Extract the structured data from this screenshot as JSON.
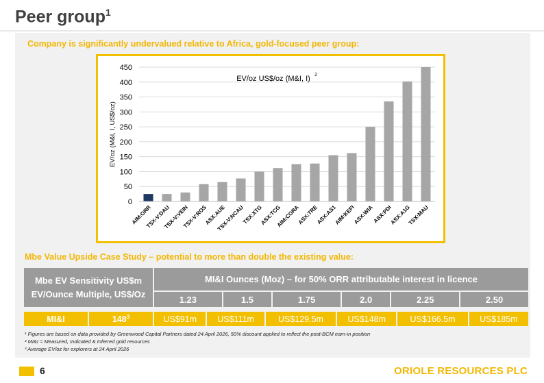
{
  "page": {
    "title": "Peer group",
    "title_sup": "1",
    "subtitle": "Company is significantly undervalued relative to Africa, gold-focused peer group:",
    "page_number": "6",
    "company": "ORIOLE RESOURCES PLC"
  },
  "chart_data": {
    "type": "bar",
    "title": "EV/oz US$/oz (M&I, I)",
    "title_sup": "2",
    "ylabel": "EV/oz (M&I, I, US$/oz)",
    "ylim": [
      0,
      450
    ],
    "yticks": [
      0,
      50,
      100,
      150,
      200,
      250,
      300,
      350,
      400,
      450
    ],
    "grid": true,
    "categories": [
      "AIM:ORR",
      "TSX-V:DAU",
      "TSX-V:VEIN",
      "TSX-V:ROS",
      "ASX:AUE",
      "TSX-V:NCAU",
      "TSX:XTG",
      "ASX:TCG",
      "AIM:CORA",
      "ASX:TRE",
      "ASX:AS1",
      "AIM:KEFI",
      "ASX:WIA",
      "ASX:PDI",
      "ASX:A1G",
      "TSX:MAU"
    ],
    "values": [
      25,
      25,
      30,
      58,
      65,
      77,
      100,
      112,
      125,
      127,
      155,
      162,
      250,
      335,
      402,
      450
    ],
    "colors": {
      "highlight": "#1f3864",
      "default": "#a6a6a6",
      "grid": "#d9d9d9"
    }
  },
  "case_study": {
    "title": "Mbe Value Upside Case Study – potential to more than double the existing value:",
    "header_left_line1": "Mbe EV Sensitivity US$m",
    "header_left_line2": "EV/Ounce Multiple, US$/Oz",
    "header_right": "MI&I Ounces (Moz) – for 50% ORR attributable interest in licence",
    "ounces": [
      "1.23",
      "1.5",
      "1.75",
      "2.0",
      "2.25",
      "2.50"
    ],
    "row_label": "MI&I",
    "row_multiple": "148",
    "row_multiple_sup": "3",
    "values": [
      "US$91m",
      "US$111m",
      "US$129.5m",
      "US$148m",
      "US$166.5m",
      "US$185m"
    ]
  },
  "footnotes": [
    "¹ Figures are based on data provided by Greenwood Capital Partners dated 24 April 2026, 50% discount applied to reflect the post-BCM earn-in position",
    "² MI&I = Measured, Indicated & Inferred gold resources",
    "³ Average EV/oz for explorers at 24 April 2026"
  ]
}
